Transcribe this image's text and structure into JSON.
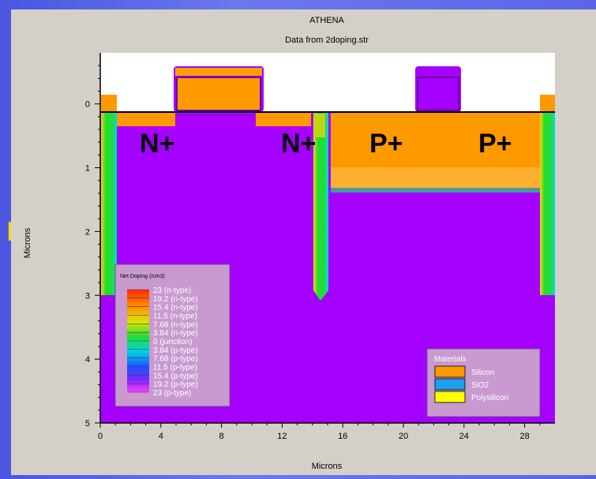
{
  "chart_data": {
    "type": "heatmap",
    "title": "ATHENA",
    "subtitle": "Data from 2doping.str",
    "xlabel": "Microns",
    "ylabel": "Microns",
    "xlim": [
      0,
      30
    ],
    "ylim": [
      -0.8,
      5
    ],
    "y_inverted": true,
    "xticks": [
      0,
      4,
      8,
      12,
      16,
      20,
      24,
      28
    ],
    "yticks": [
      0,
      1,
      2,
      3,
      4,
      5
    ],
    "annotations": [
      "N+",
      "N+",
      "P+",
      "P+"
    ],
    "colorbar": {
      "title": "Net Doping (/cm3)",
      "entries": [
        "23 (n-type)",
        "19.2 (n-type)",
        "15.4 (n-type)",
        "11.5 (n-type)",
        "7.68 (n-type)",
        "3.84 (n-type)",
        "0 (junction)",
        "3.84 (p-type)",
        "7.68 (p-type)",
        "11.5 (p-type)",
        "15.4 (p-type)",
        "19.2 (p-type)",
        "23 (p-type)"
      ]
    },
    "materials": {
      "title": "Materials",
      "items": [
        {
          "name": "Silicon",
          "color": "#ff9900"
        },
        {
          "name": "SiO2",
          "color": "#1ea0f0"
        },
        {
          "name": "Polysilicon",
          "color": "#ffff00"
        }
      ]
    },
    "colors": {
      "p_type": "#a300ff",
      "n_type": "#ff8c00",
      "junction_green": "#66dd22",
      "oxide_background": "#ffffff"
    }
  }
}
